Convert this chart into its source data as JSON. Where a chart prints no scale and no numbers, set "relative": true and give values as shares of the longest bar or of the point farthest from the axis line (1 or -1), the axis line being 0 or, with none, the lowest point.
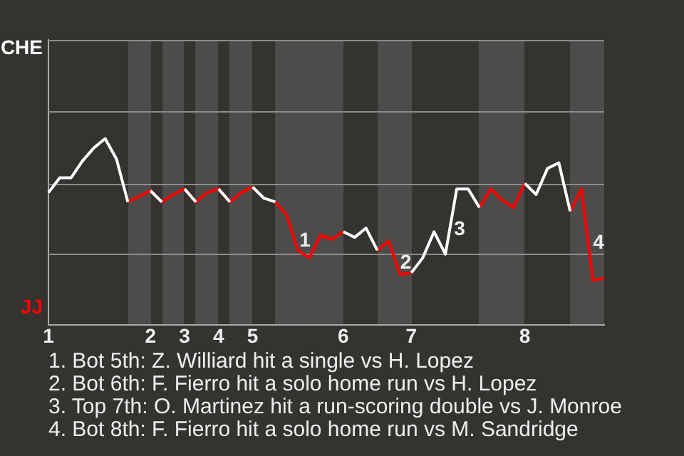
{
  "chart_data": {
    "type": "line",
    "categories": [
      "1",
      null,
      null,
      null,
      null,
      null,
      null,
      null,
      null,
      "2",
      null,
      null,
      "3",
      null,
      null,
      "4",
      null,
      null,
      "5",
      null,
      null,
      null,
      null,
      null,
      null,
      null,
      "6",
      null,
      null,
      null,
      null,
      null,
      "7",
      null,
      null,
      null,
      null,
      null,
      null,
      null,
      null,
      null,
      "8",
      null,
      null,
      null,
      null,
      null,
      null,
      null
    ],
    "series": [
      {
        "color": "#ffffff",
        "values": [
          0.71,
          0.79,
          0.79,
          0.88,
          0.95,
          1,
          0.89,
          0.66,
          null,
          0.72,
          0.66,
          null,
          0.73,
          0.66,
          null,
          0.73,
          0.66,
          null,
          0.74,
          0.68,
          0.66,
          null,
          null,
          null,
          null,
          null,
          0.5,
          0.47,
          0.52,
          0.4,
          null,
          null,
          0.28,
          0.36,
          0.5,
          0.38,
          0.73,
          0.73,
          0.63,
          null,
          null,
          null,
          0.76,
          0.7,
          0.84,
          0.87,
          0.61,
          null,
          null,
          null
        ]
      },
      {
        "color": "#ff0000",
        "values": [
          null,
          null,
          null,
          null,
          null,
          null,
          null,
          0.66,
          0.69,
          0.72,
          0.66,
          0.7,
          0.73,
          0.66,
          0.71,
          0.73,
          0.66,
          0.71,
          0.74,
          null,
          0.66,
          0.59,
          0.4,
          0.36,
          0.48,
          0.46,
          0.5,
          null,
          null,
          0.4,
          0.45,
          0.27,
          0.28,
          null,
          null,
          null,
          null,
          null,
          0.63,
          0.73,
          0.67,
          0.63,
          0.76,
          null,
          null,
          null,
          0.61,
          0.73,
          0.24,
          0.25
        ]
      }
    ],
    "relative": true,
    "annotations": [
      "CHE",
      "JJ",
      "1",
      "2",
      "3",
      "4",
      "1. Bot 5th: Z. Williard hit a single vs H. Lopez",
      "2. Bot 6th: F. Fierro hit a solo home run vs H. Lopez",
      "3. Top 7th: O. Martinez hit a run-scoring double vs J. Monroe",
      "4. Bot 8th: F. Fierro hit a solo home run vs M. Sandridge"
    ],
    "ref_lines": [
      {
        "axis": "y",
        "value": 0.38,
        "color": "#8c8c8c"
      },
      {
        "axis": "y",
        "value": 0.76,
        "color": "#8c8c8c"
      },
      {
        "axis": "y",
        "value": 1.15,
        "color": "#8c8c8c"
      },
      {
        "axis": "y",
        "value": 1.53,
        "color": "#8c8c8c"
      }
    ],
    "marker": "none",
    "line_style": "solid"
  }
}
